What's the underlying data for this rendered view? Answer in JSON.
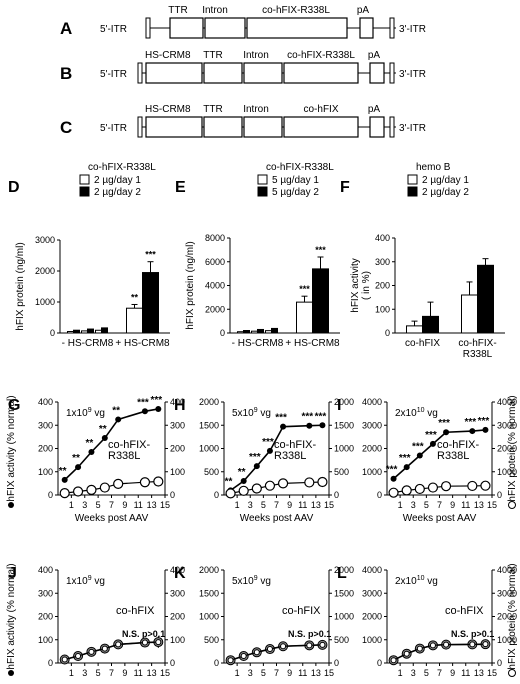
{
  "constructs": [
    {
      "letter": "A",
      "left_itr": "5'-ITR",
      "right_itr": "3'-ITR",
      "labels": [
        "TTR",
        "Intron",
        "co-hFIX-R338L",
        "pA"
      ]
    },
    {
      "letter": "B",
      "left_itr": "5'-ITR",
      "right_itr": "3'-ITR",
      "labels": [
        "HS-CRM8",
        "TTR",
        "Intron",
        "co-hFIX-R338L",
        "pA"
      ]
    },
    {
      "letter": "C",
      "left_itr": "5'-ITR",
      "right_itr": "3'-ITR",
      "labels": [
        "HS-CRM8",
        "TTR",
        "Intron",
        "co-hFIX",
        "pA"
      ]
    }
  ],
  "shared": {
    "weeks_label": "Weeks post AAV",
    "activity_axis_label": "hFIX activity (% normal)",
    "protein_axis_label": "hFIX protein (% normal)",
    "ns_label": "N.S. p>0.1",
    "sig_mark": "***"
  },
  "chart_data": [
    {
      "panel": "D",
      "type": "bar",
      "title": "co-hFIX-R338L",
      "ylabel": "hFIX protein  (ng/ml)",
      "ylim": [
        0,
        3000
      ],
      "yticks": [
        0,
        1000,
        2000,
        3000
      ],
      "categories": [
        "- HS-CRM8",
        "+ HS-CRM8"
      ],
      "series": [
        {
          "name": "2 µg/day 1",
          "color": "#ffffff",
          "values": [
            80,
            800
          ],
          "errors": [
            20,
            120
          ],
          "sig": [
            "",
            "**"
          ]
        },
        {
          "name": "2 µg/day 2",
          "color": "#000000",
          "values": [
            150,
            1950
          ],
          "errors": [
            30,
            350
          ],
          "sig": [
            "",
            "***"
          ]
        }
      ],
      "subbars": 3
    },
    {
      "panel": "E",
      "type": "bar",
      "title": "co-hFIX-R338L",
      "ylabel": "hFIX protein  (ng/ml)",
      "ylim": [
        0,
        8000
      ],
      "yticks": [
        0,
        2000,
        4000,
        6000,
        8000
      ],
      "categories": [
        "- HS-CRM8",
        "+ HS-CRM8"
      ],
      "series": [
        {
          "name": "5 µg/day 1",
          "color": "#ffffff",
          "values": [
            180,
            2600
          ],
          "errors": [
            40,
            500
          ],
          "sig": [
            "",
            "***"
          ]
        },
        {
          "name": "5 µg/day 2",
          "color": "#000000",
          "values": [
            350,
            5400
          ],
          "errors": [
            60,
            1000
          ],
          "sig": [
            "",
            "***"
          ]
        }
      ],
      "subbars": 3
    },
    {
      "panel": "F",
      "type": "bar",
      "title": "hemo B",
      "ylabel": "hFIX activity\n( in %)",
      "ylim": [
        0,
        400
      ],
      "yticks": [
        0,
        100,
        200,
        300,
        400
      ],
      "categories": [
        "co-hFIX",
        "co-hFIX-\nR338L"
      ],
      "series": [
        {
          "name": "2 µg/day 1",
          "color": "#ffffff",
          "values": [
            30,
            160
          ],
          "errors": [
            20,
            55
          ],
          "sig": [
            "",
            ""
          ]
        },
        {
          "name": "2 µg/day 2",
          "color": "#000000",
          "values": [
            70,
            285
          ],
          "errors": [
            60,
            28
          ],
          "sig": [
            "",
            ""
          ]
        }
      ],
      "subbars": 1
    },
    {
      "panel": "G",
      "type": "line",
      "dose": "1x10^9 vg",
      "construct": "co-hFIX-\nR338L",
      "left": {
        "ylim": [
          0,
          400
        ],
        "yticks": [
          0,
          100,
          200,
          300,
          400
        ]
      },
      "right": {
        "ylim": [
          0,
          400
        ],
        "yticks": [
          0,
          100,
          200,
          300,
          400
        ]
      },
      "x": [
        0,
        2,
        4,
        6,
        8,
        12,
        14
      ],
      "xticks": [
        1,
        3,
        5,
        7,
        9,
        11,
        13,
        15
      ],
      "xlim": [
        -1,
        15
      ],
      "series": [
        {
          "name": "hFIX activity",
          "marker": "filled",
          "values": [
            65,
            120,
            185,
            245,
            325,
            360,
            370
          ],
          "errors": [
            0,
            0,
            0,
            0,
            0,
            0,
            0
          ]
        },
        {
          "name": "hFIX protein",
          "marker": "open",
          "values": [
            8,
            15,
            22,
            32,
            48,
            55,
            58
          ],
          "errors": [
            0,
            0,
            0,
            0,
            0,
            0,
            0
          ]
        }
      ],
      "sig": [
        "**",
        "**",
        "**",
        "**",
        "**",
        "***",
        "***"
      ],
      "show_ns": false
    },
    {
      "panel": "H",
      "type": "line",
      "dose": "5x10^9 vg",
      "construct": "co-hFIX-\nR338L",
      "left": {
        "ylim": [
          0,
          2000
        ],
        "yticks": [
          0,
          500,
          1000,
          1500,
          2000
        ]
      },
      "right": {
        "ylim": [
          0,
          2000
        ],
        "yticks": [
          0,
          500,
          1000,
          1500,
          2000
        ]
      },
      "x": [
        0,
        2,
        4,
        6,
        8,
        12,
        14
      ],
      "xticks": [
        1,
        3,
        5,
        7,
        9,
        11,
        13,
        15
      ],
      "xlim": [
        -1,
        15
      ],
      "series": [
        {
          "name": "hFIX activity",
          "marker": "filled",
          "values": [
            100,
            300,
            620,
            950,
            1470,
            1490,
            1500
          ],
          "errors": [
            0,
            0,
            0,
            0,
            0,
            0,
            0
          ]
        },
        {
          "name": "hFIX protein",
          "marker": "open",
          "values": [
            35,
            90,
            140,
            200,
            250,
            270,
            280
          ],
          "errors": [
            0,
            0,
            0,
            0,
            0,
            0,
            0
          ]
        }
      ],
      "sig": [
        "**",
        "**",
        "***",
        "***",
        "***",
        "***",
        "***"
      ],
      "show_ns": false
    },
    {
      "panel": "I",
      "type": "line",
      "dose": "2x10^10 vg",
      "construct": "co-hFIX-\nR338L",
      "left": {
        "ylim": [
          0,
          4000
        ],
        "yticks": [
          0,
          1000,
          2000,
          3000,
          4000
        ]
      },
      "right": {
        "ylim": [
          0,
          4000
        ],
        "yticks": [
          0,
          1000,
          2000,
          3000,
          4000
        ]
      },
      "x": [
        0,
        2,
        4,
        6,
        8,
        12,
        14
      ],
      "xticks": [
        1,
        3,
        5,
        7,
        9,
        11,
        13,
        15
      ],
      "xlim": [
        -1,
        15
      ],
      "series": [
        {
          "name": "hFIX activity",
          "marker": "filled",
          "values": [
            700,
            1200,
            1700,
            2200,
            2700,
            2750,
            2800
          ],
          "errors": [
            0,
            0,
            0,
            0,
            0,
            0,
            0
          ]
        },
        {
          "name": "hFIX protein",
          "marker": "open",
          "values": [
            100,
            200,
            260,
            320,
            380,
            390,
            400
          ],
          "errors": [
            0,
            0,
            0,
            0,
            0,
            0,
            0
          ]
        }
      ],
      "sig": [
        "***",
        "***",
        "***",
        "***",
        "***",
        "***",
        "***"
      ],
      "show_ns": false
    },
    {
      "panel": "J",
      "type": "line",
      "dose": "1x10^9 vg",
      "construct": "co-hFIX",
      "left": {
        "ylim": [
          0,
          400
        ],
        "yticks": [
          0,
          100,
          200,
          300,
          400
        ]
      },
      "right": {
        "ylim": [
          0,
          400
        ],
        "yticks": [
          0,
          100,
          200,
          300,
          400
        ]
      },
      "x": [
        0,
        2,
        4,
        6,
        8,
        12,
        14
      ],
      "xticks": [
        1,
        3,
        5,
        7,
        9,
        11,
        13,
        15
      ],
      "xlim": [
        -1,
        15
      ],
      "series": [
        {
          "name": "hFIX activity",
          "marker": "filled",
          "values": [
            15,
            30,
            48,
            62,
            80,
            88,
            90
          ],
          "errors": [
            0,
            0,
            0,
            0,
            0,
            0,
            25
          ]
        },
        {
          "name": "hFIX protein",
          "marker": "open",
          "values": [
            15,
            30,
            48,
            62,
            80,
            88,
            90
          ],
          "errors": [
            0,
            0,
            0,
            0,
            0,
            0,
            0
          ]
        }
      ],
      "sig": [],
      "show_ns": true
    },
    {
      "panel": "K",
      "type": "line",
      "dose": "5x10^9 vg",
      "construct": "co-hFIX",
      "left": {
        "ylim": [
          0,
          2000
        ],
        "yticks": [
          0,
          500,
          1000,
          1500,
          2000
        ]
      },
      "right": {
        "ylim": [
          0,
          2000
        ],
        "yticks": [
          0,
          500,
          1000,
          1500,
          2000
        ]
      },
      "x": [
        0,
        2,
        4,
        6,
        8,
        12,
        14
      ],
      "xticks": [
        1,
        3,
        5,
        7,
        9,
        11,
        13,
        15
      ],
      "xlim": [
        -1,
        15
      ],
      "series": [
        {
          "name": "hFIX activity",
          "marker": "filled",
          "values": [
            60,
            150,
            230,
            300,
            360,
            380,
            390
          ],
          "errors": [
            0,
            0,
            0,
            0,
            0,
            0,
            0
          ]
        },
        {
          "name": "hFIX protein",
          "marker": "open",
          "values": [
            60,
            150,
            230,
            300,
            360,
            380,
            390
          ],
          "errors": [
            0,
            0,
            0,
            0,
            0,
            0,
            0
          ]
        }
      ],
      "sig": [],
      "show_ns": true
    },
    {
      "panel": "L",
      "type": "line",
      "dose": "2x10^10 vg",
      "construct": "co-hFIX",
      "left": {
        "ylim": [
          0,
          4000
        ],
        "yticks": [
          0,
          1000,
          2000,
          3000,
          4000
        ]
      },
      "right": {
        "ylim": [
          0,
          4000
        ],
        "yticks": [
          0,
          1000,
          2000,
          3000,
          4000
        ]
      },
      "x": [
        0,
        2,
        4,
        6,
        8,
        12,
        14
      ],
      "xticks": [
        1,
        3,
        5,
        7,
        9,
        11,
        13,
        15
      ],
      "xlim": [
        -1,
        15
      ],
      "series": [
        {
          "name": "hFIX activity",
          "marker": "filled",
          "values": [
            120,
            400,
            620,
            760,
            790,
            800,
            810
          ],
          "errors": [
            0,
            0,
            0,
            0,
            0,
            0,
            0
          ]
        },
        {
          "name": "hFIX protein",
          "marker": "open",
          "values": [
            120,
            400,
            620,
            760,
            790,
            800,
            810
          ],
          "errors": [
            0,
            0,
            0,
            0,
            0,
            0,
            0
          ]
        }
      ],
      "sig": [],
      "show_ns": true
    }
  ]
}
